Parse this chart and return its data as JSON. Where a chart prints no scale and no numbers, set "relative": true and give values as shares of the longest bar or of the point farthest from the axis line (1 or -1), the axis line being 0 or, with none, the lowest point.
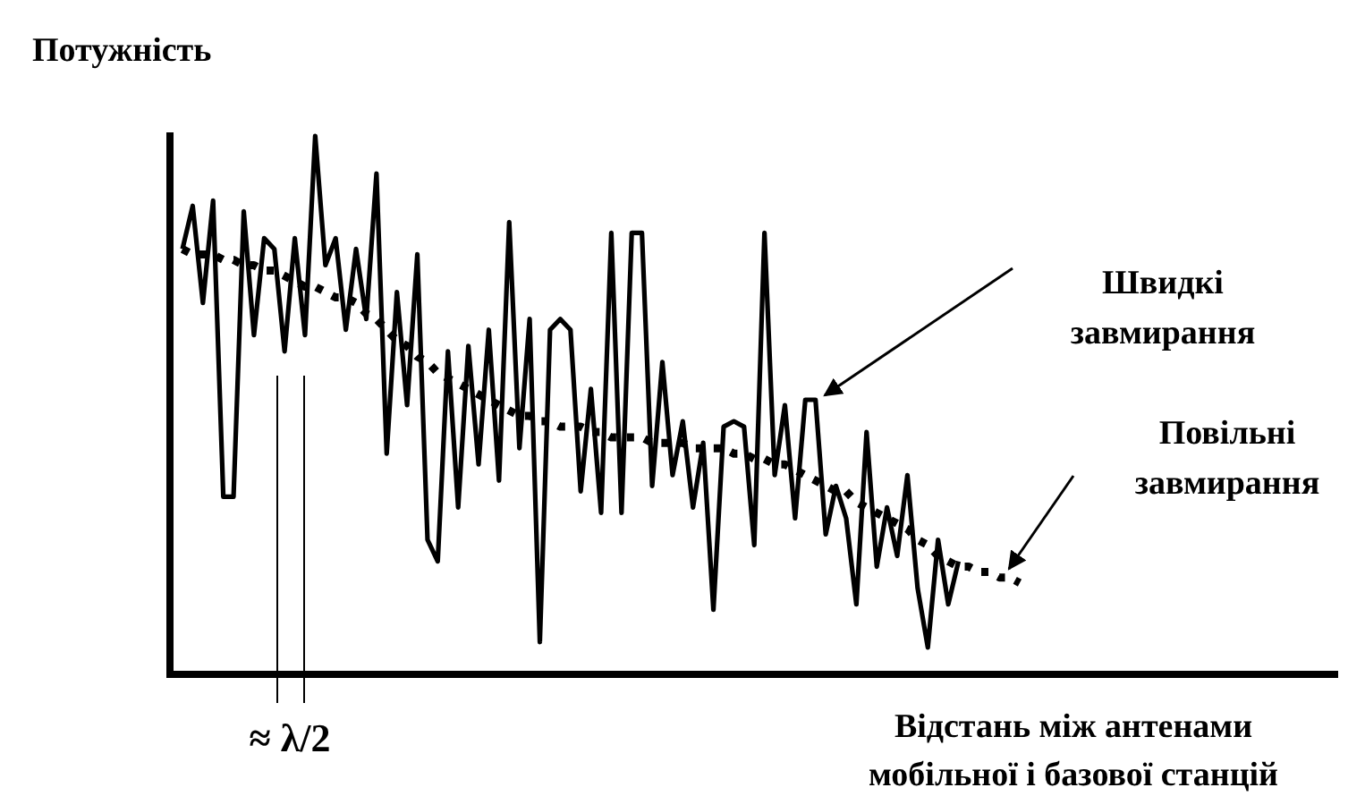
{
  "chart_data": {
    "type": "line",
    "relative": true,
    "ylabel": "Потужність",
    "xlabel": "Відстань між антенами мобільної і базової станцій",
    "categories": [
      null,
      null,
      null,
      null,
      null,
      null,
      null,
      null,
      null,
      null,
      null,
      null,
      null,
      null,
      null,
      null,
      null,
      null,
      null,
      null,
      null,
      null,
      null,
      null,
      null,
      null,
      null,
      null,
      null,
      null,
      null,
      null,
      null,
      null,
      null,
      null,
      null,
      null,
      null,
      null,
      null,
      null,
      null,
      null,
      null,
      null,
      null,
      null,
      null,
      null,
      null,
      null,
      null,
      null,
      null,
      null,
      null,
      null,
      null,
      null,
      null,
      null,
      null,
      null,
      null,
      null,
      null,
      null,
      null,
      null,
      null,
      null,
      null,
      null,
      null,
      null,
      null,
      null,
      null,
      null,
      null,
      null,
      null
    ],
    "series": [
      {
        "color": "#000000",
        "line_style": "solid",
        "values": [
          0.79,
          0.87,
          0.69,
          0.88,
          0.33,
          0.33,
          0.86,
          0.63,
          0.81,
          0.79,
          0.6,
          0.81,
          0.63,
          1,
          0.76,
          0.81,
          0.64,
          0.79,
          0.66,
          0.93,
          0.41,
          0.71,
          0.5,
          0.78,
          0.25,
          0.21,
          0.6,
          0.31,
          0.61,
          0.39,
          0.64,
          0.36,
          0.84,
          0.42,
          0.66,
          0.06,
          0.64,
          0.66,
          0.64,
          0.34,
          0.53,
          0.3,
          0.82,
          0.3,
          0.82,
          0.82,
          0.35,
          0.58,
          0.37,
          0.47,
          0.31,
          0.43,
          0.12,
          0.46,
          0.47,
          0.46,
          0.24,
          0.82,
          0.37,
          0.5,
          0.29,
          0.51,
          0.51,
          0.26,
          0.35,
          0.29,
          0.13,
          0.45,
          0.2,
          0.31,
          0.22,
          0.37,
          0.16,
          0.05,
          0.25,
          0.13,
          0.21,
          null,
          null,
          null,
          null,
          null,
          null
        ]
      },
      {
        "color": "#000000",
        "line_style": "dotted",
        "values": [
          0.79,
          0.78,
          0.78,
          0.78,
          0.77,
          0.77,
          0.76,
          0.76,
          0.75,
          0.75,
          0.74,
          0.73,
          0.72,
          0.72,
          0.71,
          0.7,
          0.7,
          0.69,
          0.67,
          0.66,
          0.64,
          0.62,
          0.61,
          0.59,
          0.58,
          0.56,
          0.55,
          0.54,
          0.53,
          0.52,
          0.51,
          0.5,
          0.49,
          0.48,
          0.48,
          0.47,
          0.47,
          0.46,
          0.46,
          0.46,
          0.45,
          0.45,
          0.44,
          0.44,
          0.44,
          0.44,
          0.43,
          0.43,
          0.43,
          0.43,
          0.42,
          0.42,
          0.42,
          0.42,
          0.41,
          0.41,
          0.4,
          0.4,
          0.39,
          0.39,
          0.38,
          0.37,
          0.36,
          0.35,
          0.34,
          0.34,
          0.32,
          0.31,
          0.3,
          0.29,
          0.28,
          0.27,
          0.25,
          0.24,
          0.22,
          0.21,
          0.2,
          0.2,
          0.19,
          0.19,
          0.18,
          0.18,
          0.17
        ]
      }
    ],
    "annotations": [
      "Швидкі завмирання",
      "Повільні завмирання",
      "≈ λ/2"
    ]
  }
}
